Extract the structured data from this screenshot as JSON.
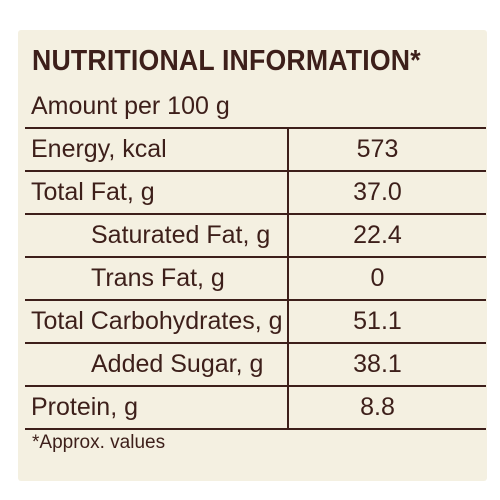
{
  "title": "NUTRITIONAL INFORMATION*",
  "serving_label": "Amount per 100 g",
  "rows": [
    {
      "label": "Energy, kcal",
      "value": "573"
    },
    {
      "label": "Total Fat, g",
      "value": "37.0"
    },
    {
      "label": "Saturated Fat, g",
      "value": "22.4"
    },
    {
      "label": "Trans Fat, g",
      "value": "0"
    },
    {
      "label": "Total Carbohydrates, g",
      "value": "51.1"
    },
    {
      "label": "Added  Sugar, g",
      "value": "38.1"
    },
    {
      "label": "Protein, g",
      "value": "8.8"
    }
  ],
  "footnote": "*Approx. values",
  "colors": {
    "text": "#3d1f1a",
    "panel_background": "#f4f0e1"
  }
}
